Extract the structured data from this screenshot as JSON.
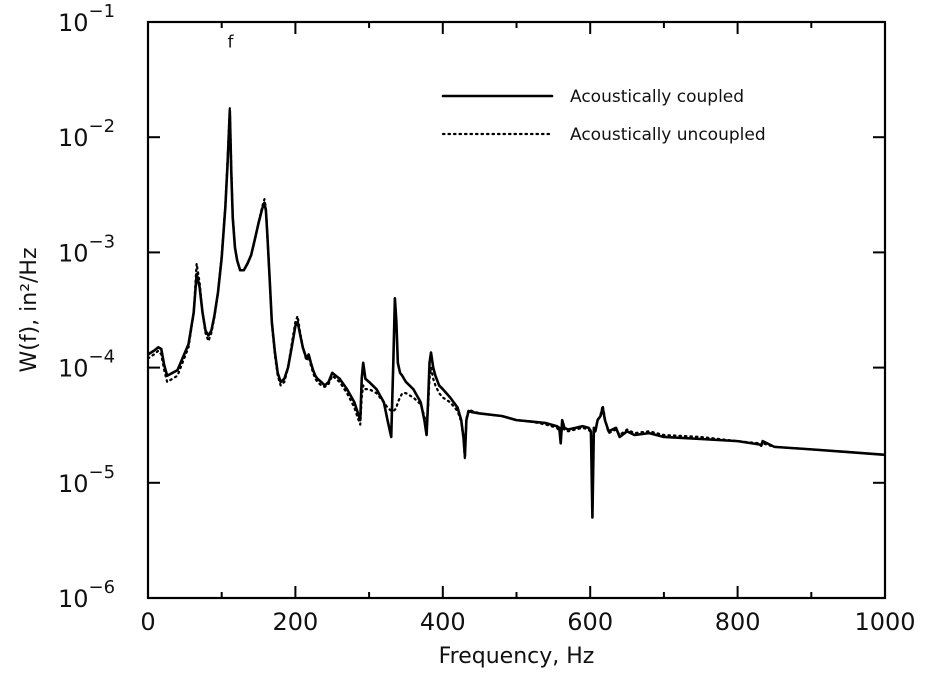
{
  "chart_data": {
    "type": "line",
    "xlabel": "Frequency, Hz",
    "ylabel": "W(f), in²/Hz",
    "xlim": [
      0,
      1000
    ],
    "ylim": [
      1e-06,
      0.1
    ],
    "yscale": "log",
    "grid": false,
    "legend_position": "top-right",
    "x_ticks": [
      {
        "value": 0,
        "label": "0"
      },
      {
        "value": 200,
        "label": "200"
      },
      {
        "value": 400,
        "label": "400"
      },
      {
        "value": 600,
        "label": "600"
      },
      {
        "value": 800,
        "label": "800"
      },
      {
        "value": 1000,
        "label": "1000"
      }
    ],
    "y_ticks": [
      {
        "value": 1e-06,
        "base": "10",
        "exp": "−6"
      },
      {
        "value": 1e-05,
        "base": "10",
        "exp": "−5"
      },
      {
        "value": 0.0001,
        "base": "10",
        "exp": "−4"
      },
      {
        "value": 0.001,
        "base": "10",
        "exp": "−3"
      },
      {
        "value": 0.01,
        "base": "10",
        "exp": "−2"
      },
      {
        "value": 0.1,
        "base": "10",
        "exp": "−1"
      }
    ],
    "annotations": [
      {
        "text": "f",
        "x": 112,
        "y": 0.06
      }
    ],
    "series": [
      {
        "name": "Acoustically coupled",
        "style": "solid",
        "color": "#000000",
        "x": [
          0,
          8,
          14,
          18,
          22,
          26,
          40,
          55,
          62,
          66,
          70,
          74,
          78,
          82,
          86,
          90,
          95,
          100,
          105,
          108,
          111,
          113,
          115,
          118,
          121,
          125,
          130,
          135,
          140,
          145,
          150,
          155,
          158,
          160,
          162,
          165,
          168,
          172,
          176,
          180,
          185,
          190,
          195,
          200,
          203,
          206,
          210,
          215,
          218,
          221,
          224,
          227,
          230,
          235,
          240,
          245,
          250,
          260,
          270,
          280,
          285,
          288,
          290,
          292,
          295,
          300,
          310,
          320,
          325,
          330,
          333,
          335,
          337,
          339,
          342,
          345,
          350,
          360,
          370,
          375,
          378,
          380,
          382,
          384,
          387,
          390,
          395,
          400,
          410,
          420,
          425,
          428,
          430,
          432,
          435,
          440,
          450,
          480,
          500,
          520,
          540,
          555,
          558,
          560,
          562,
          565,
          570,
          580,
          590,
          598,
          601,
          603,
          605,
          607,
          610,
          614,
          617,
          620,
          625,
          635,
          640,
          650,
          660,
          680,
          700,
          750,
          800,
          830,
          832,
          834,
          850,
          900,
          950,
          1000
        ],
        "y": [
          0.00013,
          0.00014,
          0.00015,
          0.000145,
          0.000105,
          8.5e-05,
          9.5e-05,
          0.00016,
          0.0003,
          0.00065,
          0.0005,
          0.0003,
          0.00021,
          0.00019,
          0.00021,
          0.00028,
          0.00045,
          0.0009,
          0.0025,
          0.006,
          0.017,
          0.005,
          0.002,
          0.0011,
          0.00085,
          0.0007,
          0.0007,
          0.0008,
          0.00095,
          0.0013,
          0.0018,
          0.0024,
          0.0027,
          0.0023,
          0.0014,
          0.0006,
          0.00025,
          0.00014,
          9e-05,
          7.5e-05,
          8e-05,
          0.0001,
          0.00015,
          0.00023,
          0.00025,
          0.0002,
          0.00015,
          0.00012,
          0.00013,
          0.00011,
          9.5e-05,
          8.5e-05,
          8e-05,
          7.5e-05,
          7e-05,
          7.5e-05,
          9e-05,
          8e-05,
          6.5e-05,
          5e-05,
          4e-05,
          3.5e-05,
          8e-05,
          0.00011,
          8e-05,
          7.5e-05,
          6.5e-05,
          5e-05,
          3.5e-05,
          2.5e-05,
          0.00012,
          0.0004,
          0.00025,
          0.00011,
          9e-05,
          8.5e-05,
          7.5e-05,
          6.5e-05,
          5e-05,
          3.5e-05,
          2.6e-05,
          5e-05,
          0.00011,
          0.000135,
          0.0001,
          8.5e-05,
          7e-05,
          6.5e-05,
          5.5e-05,
          4.5e-05,
          3.5e-05,
          2.5e-05,
          1.7e-05,
          3.5e-05,
          4.2e-05,
          4.1e-05,
          4e-05,
          3.8e-05,
          3.5e-05,
          3.4e-05,
          3.3e-05,
          3.1e-05,
          3e-05,
          2.2e-05,
          3.5e-05,
          3e-05,
          2.9e-05,
          3e-05,
          3.1e-05,
          3e-05,
          2.8e-05,
          5e-06,
          3e-05,
          2.8e-05,
          3.5e-05,
          3.8e-05,
          4.5e-05,
          3.5e-05,
          2.8e-05,
          3e-05,
          2.5e-05,
          2.8e-05,
          2.6e-05,
          2.7e-05,
          2.5e-05,
          2.4e-05,
          2.3e-05,
          2.15e-05,
          2.1e-05,
          2.3e-05,
          2.05e-05,
          1.95e-05,
          1.85e-05,
          1.75e-05
        ]
      },
      {
        "name": "Acoustically uncoupled",
        "style": "dotted",
        "color": "#000000",
        "x": [
          0,
          8,
          14,
          18,
          22,
          26,
          40,
          55,
          62,
          66,
          70,
          74,
          78,
          82,
          86,
          90,
          95,
          100,
          105,
          108,
          111,
          113,
          115,
          118,
          121,
          125,
          130,
          135,
          140,
          145,
          150,
          155,
          158,
          160,
          162,
          165,
          168,
          172,
          176,
          180,
          185,
          190,
          195,
          200,
          203,
          206,
          210,
          215,
          218,
          221,
          224,
          227,
          230,
          235,
          240,
          245,
          250,
          260,
          270,
          280,
          285,
          288,
          290,
          292,
          295,
          300,
          310,
          320,
          325,
          330,
          333,
          335,
          337,
          339,
          342,
          345,
          350,
          360,
          370,
          375,
          378,
          380,
          382,
          384,
          387,
          390,
          395,
          400,
          410,
          420,
          425,
          428,
          430,
          432,
          435,
          440,
          450,
          480,
          500,
          520,
          540,
          555,
          558,
          560,
          562,
          565,
          570,
          580,
          590,
          598,
          601,
          603,
          605,
          607,
          610,
          614,
          617,
          620,
          625,
          635,
          640,
          650,
          660,
          680,
          700,
          750,
          800,
          830,
          832,
          834,
          850,
          900,
          950,
          1000
        ],
        "y": [
          0.00012,
          0.00013,
          0.00014,
          0.00013,
          9.5e-05,
          7.5e-05,
          8.5e-05,
          0.00015,
          0.0003,
          0.0008,
          0.00055,
          0.0003,
          0.0002,
          0.00017,
          0.0002,
          0.00027,
          0.00045,
          0.00095,
          0.0026,
          0.0065,
          0.018,
          0.0055,
          0.0021,
          0.0011,
          0.00085,
          0.0007,
          0.0007,
          0.0008,
          0.00095,
          0.0013,
          0.0018,
          0.0025,
          0.0029,
          0.0024,
          0.0014,
          0.0006,
          0.00024,
          0.00013,
          8.5e-05,
          7e-05,
          7.5e-05,
          0.0001,
          0.00016,
          0.00025,
          0.00028,
          0.00021,
          0.00015,
          0.000115,
          0.000125,
          0.000105,
          9e-05,
          8e-05,
          7.5e-05,
          7e-05,
          6.8e-05,
          7.2e-05,
          8.5e-05,
          7.5e-05,
          6e-05,
          4.5e-05,
          3.6e-05,
          3.2e-05,
          5.5e-05,
          7e-05,
          6.5e-05,
          6.5e-05,
          6e-05,
          5e-05,
          4.5e-05,
          4.2e-05,
          4.2e-05,
          4.3e-05,
          4.5e-05,
          5e-05,
          5.5e-05,
          6e-05,
          6e-05,
          5.5e-05,
          4.8e-05,
          3.8e-05,
          3e-05,
          4.5e-05,
          8e-05,
          0.0001,
          8e-05,
          7e-05,
          6e-05,
          5.5e-05,
          5e-05,
          4.2e-05,
          3.4e-05,
          2.4e-05,
          1.6e-05,
          3.6e-05,
          4.3e-05,
          4.2e-05,
          4e-05,
          3.8e-05,
          3.5e-05,
          3.4e-05,
          3.2e-05,
          3e-05,
          2.8e-05,
          2.6e-05,
          3e-05,
          2.9e-05,
          2.8e-05,
          2.9e-05,
          3e-05,
          2.9e-05,
          2.7e-05,
          2e-05,
          2.8e-05,
          2.8e-05,
          3.5e-05,
          3.9e-05,
          4.7e-05,
          3.6e-05,
          2.7e-05,
          2.9e-05,
          2.6e-05,
          2.9e-05,
          2.7e-05,
          2.8e-05,
          2.6e-05,
          2.5e-05,
          2.3e-05,
          2.2e-05,
          2.1e-05,
          2.2e-05,
          2.05e-05,
          1.95e-05,
          1.85e-05,
          1.75e-05
        ]
      }
    ]
  }
}
